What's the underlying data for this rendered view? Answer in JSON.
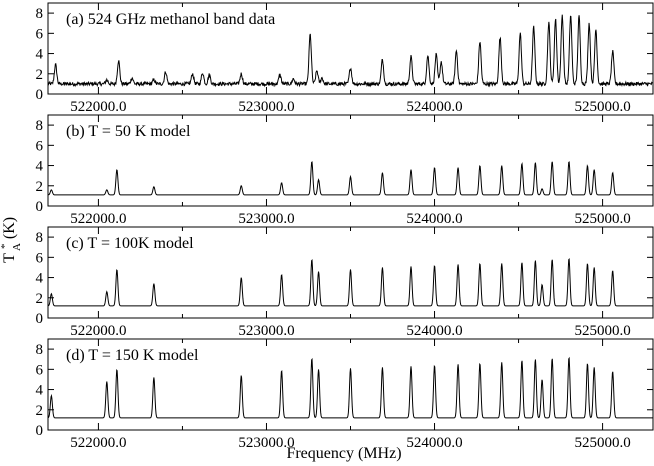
{
  "figure": {
    "xlabel": "Frequency (MHz)",
    "ylabel_main": "T",
    "ylabel_sub": "A",
    "ylabel_sup": "*",
    "ylabel_unit": "(K)"
  },
  "chart_data": [
    {
      "type": "line",
      "title": "(a) 524 GHz methanol band data",
      "xlim": [
        521700,
        525300
      ],
      "ylim": [
        0,
        9
      ],
      "xticks": [
        522000,
        523000,
        524000,
        525000
      ],
      "xtick_labels": [
        "522000.0",
        "523000.0",
        "524000.0",
        "525000.0"
      ],
      "yticks": [
        0,
        2,
        4,
        6,
        8
      ],
      "ytick_labels": [
        "0",
        "2",
        "4",
        "6",
        "8"
      ],
      "baseline": 1.0,
      "noisy": true,
      "peaks": [
        [
          521745,
          2.9
        ],
        [
          522050,
          1.4
        ],
        [
          522120,
          3.3
        ],
        [
          522200,
          1.6
        ],
        [
          522330,
          1.4
        ],
        [
          522400,
          2.2
        ],
        [
          522560,
          2.0
        ],
        [
          522620,
          2.1
        ],
        [
          522660,
          1.9
        ],
        [
          522850,
          2.0
        ],
        [
          523080,
          1.9
        ],
        [
          523160,
          1.5
        ],
        [
          523260,
          5.9
        ],
        [
          523300,
          2.3
        ],
        [
          523330,
          1.6
        ],
        [
          523500,
          2.6
        ],
        [
          523690,
          3.4
        ],
        [
          523860,
          3.7
        ],
        [
          523960,
          3.8
        ],
        [
          524010,
          3.9
        ],
        [
          524040,
          3.2
        ],
        [
          524130,
          4.3
        ],
        [
          524270,
          5.2
        ],
        [
          524390,
          5.6
        ],
        [
          524510,
          6.0
        ],
        [
          524590,
          6.6
        ],
        [
          524680,
          7.1
        ],
        [
          524720,
          7.4
        ],
        [
          524760,
          7.8
        ],
        [
          524810,
          7.8
        ],
        [
          524860,
          7.7
        ],
        [
          524920,
          7.0
        ],
        [
          524960,
          6.4
        ],
        [
          525060,
          4.2
        ]
      ],
      "grid": false
    },
    {
      "type": "line",
      "title": "(b) T = 50 K model",
      "xlim": [
        521700,
        525300
      ],
      "ylim": [
        0,
        9
      ],
      "xticks": [
        522000,
        523000,
        524000,
        525000
      ],
      "xtick_labels": [
        "522000.0",
        "523000.0",
        "524000.0",
        "525000.0"
      ],
      "yticks": [
        0,
        2,
        4,
        6,
        8
      ],
      "ytick_labels": [
        "0",
        "2",
        "4",
        "6",
        "8"
      ],
      "baseline": 1.1,
      "noisy": false,
      "peaks": [
        [
          521720,
          1.6
        ],
        [
          522050,
          1.6
        ],
        [
          522110,
          3.6
        ],
        [
          522330,
          1.9
        ],
        [
          522850,
          2.0
        ],
        [
          523090,
          2.3
        ],
        [
          523270,
          4.4
        ],
        [
          523310,
          2.6
        ],
        [
          523500,
          2.9
        ],
        [
          523690,
          3.3
        ],
        [
          523860,
          3.6
        ],
        [
          524000,
          3.8
        ],
        [
          524140,
          3.8
        ],
        [
          524270,
          4.0
        ],
        [
          524400,
          4.0
        ],
        [
          524520,
          4.2
        ],
        [
          524600,
          4.3
        ],
        [
          524640,
          1.7
        ],
        [
          524700,
          4.4
        ],
        [
          524800,
          4.4
        ],
        [
          524910,
          4.0
        ],
        [
          524950,
          3.6
        ],
        [
          525060,
          3.3
        ]
      ],
      "grid": false
    },
    {
      "type": "line",
      "title": "(c) T = 100K model",
      "xlim": [
        521700,
        525300
      ],
      "ylim": [
        0,
        9
      ],
      "xticks": [
        522000,
        523000,
        524000,
        525000
      ],
      "xtick_labels": [
        "522000.0",
        "523000.0",
        "524000.0",
        "525000.0"
      ],
      "yticks": [
        0,
        2,
        4,
        6,
        8
      ],
      "ytick_labels": [
        "0",
        "2",
        "4",
        "6",
        "8"
      ],
      "baseline": 1.2,
      "noisy": false,
      "peaks": [
        [
          521720,
          2.4
        ],
        [
          522050,
          2.6
        ],
        [
          522110,
          4.8
        ],
        [
          522330,
          3.4
        ],
        [
          522850,
          4.0
        ],
        [
          523090,
          4.3
        ],
        [
          523270,
          5.8
        ],
        [
          523310,
          4.6
        ],
        [
          523500,
          4.8
        ],
        [
          523690,
          5.0
        ],
        [
          523860,
          5.1
        ],
        [
          524000,
          5.2
        ],
        [
          524140,
          5.3
        ],
        [
          524270,
          5.4
        ],
        [
          524400,
          5.4
        ],
        [
          524520,
          5.5
        ],
        [
          524600,
          5.7
        ],
        [
          524640,
          3.3
        ],
        [
          524700,
          5.8
        ],
        [
          524800,
          5.9
        ],
        [
          524910,
          5.4
        ],
        [
          524950,
          5.0
        ],
        [
          525060,
          4.7
        ]
      ],
      "grid": false
    },
    {
      "type": "line",
      "title": "(d) T = 150 K model",
      "xlim": [
        521700,
        525300
      ],
      "ylim": [
        0,
        9
      ],
      "xticks": [
        522000,
        523000,
        524000,
        525000
      ],
      "xtick_labels": [
        "522000.0",
        "523000.0",
        "524000.0",
        "525000.0"
      ],
      "yticks": [
        0,
        2,
        4,
        6,
        8
      ],
      "ytick_labels": [
        "0",
        "2",
        "4",
        "6",
        "8"
      ],
      "baseline": 1.2,
      "noisy": false,
      "peaks": [
        [
          521720,
          3.4
        ],
        [
          522050,
          4.8
        ],
        [
          522110,
          6.0
        ],
        [
          522330,
          5.2
        ],
        [
          522850,
          5.4
        ],
        [
          523090,
          5.9
        ],
        [
          523270,
          7.1
        ],
        [
          523310,
          6.0
        ],
        [
          523500,
          6.1
        ],
        [
          523690,
          6.2
        ],
        [
          523860,
          6.3
        ],
        [
          524000,
          6.4
        ],
        [
          524140,
          6.5
        ],
        [
          524270,
          6.6
        ],
        [
          524400,
          6.7
        ],
        [
          524520,
          6.9
        ],
        [
          524600,
          7.0
        ],
        [
          524640,
          5.0
        ],
        [
          524700,
          7.1
        ],
        [
          524800,
          7.2
        ],
        [
          524910,
          6.6
        ],
        [
          524950,
          6.2
        ],
        [
          525060,
          5.8
        ]
      ],
      "grid": false
    }
  ]
}
